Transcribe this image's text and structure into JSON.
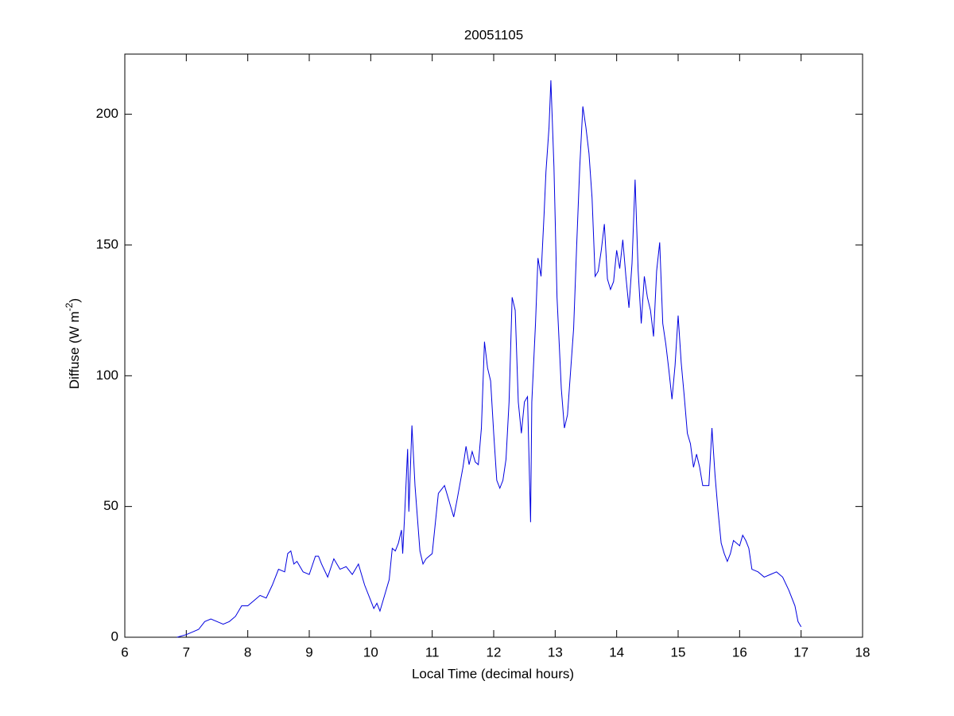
{
  "chart_data": {
    "type": "line",
    "title": "20051105",
    "x_label": "Local Time (decimal hours)",
    "y_label": "Diffuse (W m",
    "y_label_superscript": "-2",
    "y_label_close": ")",
    "xlim": [
      6,
      18
    ],
    "xticks": [
      6,
      7,
      8,
      9,
      10,
      11,
      12,
      13,
      14,
      15,
      16,
      17,
      18
    ],
    "ylim": [
      0,
      223
    ],
    "yticks": [
      0,
      50,
      100,
      150,
      200
    ],
    "grid": false,
    "box": true,
    "series": [
      {
        "color": "#0000e0",
        "x": [
          6.85,
          7.0,
          7.1,
          7.2,
          7.3,
          7.4,
          7.5,
          7.6,
          7.7,
          7.8,
          7.9,
          8.0,
          8.1,
          8.2,
          8.3,
          8.4,
          8.5,
          8.6,
          8.65,
          8.7,
          8.75,
          8.8,
          8.9,
          9.0,
          9.1,
          9.15,
          9.2,
          9.3,
          9.4,
          9.5,
          9.6,
          9.7,
          9.8,
          9.9,
          10.0,
          10.05,
          10.1,
          10.15,
          10.2,
          10.3,
          10.35,
          10.4,
          10.45,
          10.5,
          10.52,
          10.55,
          10.6,
          10.62,
          10.67,
          10.72,
          10.8,
          10.85,
          10.9,
          11.0,
          11.1,
          11.2,
          11.3,
          11.35,
          11.4,
          11.5,
          11.55,
          11.6,
          11.65,
          11.7,
          11.75,
          11.8,
          11.85,
          11.9,
          11.95,
          12.0,
          12.05,
          12.1,
          12.15,
          12.2,
          12.25,
          12.3,
          12.35,
          12.4,
          12.45,
          12.5,
          12.55,
          12.6,
          12.62,
          12.68,
          12.72,
          12.77,
          12.82,
          12.85,
          12.9,
          12.93,
          12.98,
          13.03,
          13.1,
          13.15,
          13.2,
          13.3,
          13.35,
          13.4,
          13.45,
          13.5,
          13.55,
          13.6,
          13.65,
          13.7,
          13.75,
          13.8,
          13.85,
          13.9,
          13.95,
          14.0,
          14.05,
          14.1,
          14.15,
          14.2,
          14.25,
          14.3,
          14.35,
          14.4,
          14.45,
          14.5,
          14.55,
          14.6,
          14.65,
          14.7,
          14.75,
          14.8,
          14.85,
          14.9,
          14.95,
          15.0,
          15.05,
          15.1,
          15.15,
          15.2,
          15.25,
          15.3,
          15.35,
          15.4,
          15.5,
          15.55,
          15.6,
          15.65,
          15.7,
          15.75,
          15.8,
          15.85,
          15.9,
          16.0,
          16.05,
          16.1,
          16.15,
          16.2,
          16.3,
          16.4,
          16.5,
          16.6,
          16.7,
          16.8,
          16.9,
          16.95,
          17.0
        ],
        "values": [
          0,
          1,
          2,
          3,
          6,
          7,
          6,
          5,
          6,
          8,
          12,
          12,
          14,
          16,
          15,
          20,
          26,
          25,
          32,
          33,
          28,
          29,
          25,
          24,
          31,
          31,
          28,
          23,
          30,
          26,
          27,
          24,
          28,
          20,
          14,
          11,
          13,
          10,
          14,
          22,
          34,
          33,
          36,
          41,
          32,
          46,
          72,
          48,
          81,
          58,
          33,
          28,
          30,
          32,
          55,
          58,
          50,
          46,
          52,
          65,
          73,
          66,
          71,
          67,
          66,
          80,
          113,
          103,
          98,
          78,
          60,
          57,
          60,
          68,
          90,
          130,
          125,
          90,
          78,
          90,
          92,
          44,
          90,
          120,
          145,
          138,
          162,
          178,
          195,
          213,
          180,
          130,
          95,
          80,
          85,
          118,
          150,
          180,
          203,
          195,
          185,
          168,
          138,
          140,
          148,
          158,
          137,
          133,
          136,
          148,
          141,
          152,
          138,
          126,
          143,
          175,
          140,
          120,
          138,
          130,
          125,
          115,
          140,
          151,
          120,
          112,
          102,
          91,
          104,
          123,
          105,
          92,
          78,
          74,
          65,
          70,
          65,
          58,
          58,
          80,
          62,
          48,
          36,
          32,
          29,
          32,
          37,
          35,
          39,
          37,
          34,
          26,
          25,
          23,
          24,
          25,
          23,
          18,
          12,
          6,
          4
        ]
      }
    ]
  }
}
